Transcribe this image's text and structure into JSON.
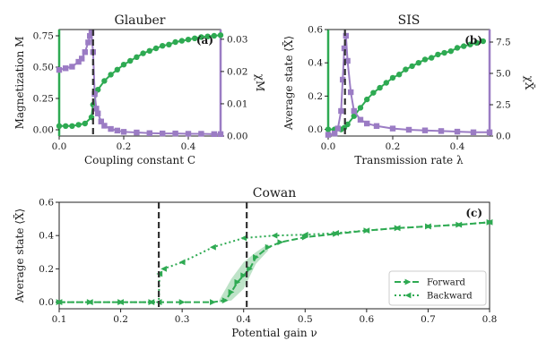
{
  "colors": {
    "green": "#2eaa52",
    "purple": "#9b7cc4",
    "dashed": "#333333",
    "band": "#a8dab5"
  },
  "chart_data": [
    {
      "id": "a",
      "type": "line",
      "title": "Glauber",
      "panel_label": "(a)",
      "xlabel": "Coupling constant C",
      "ylabel": "Magnetization M",
      "y2label": "χM",
      "xlim": [
        0,
        0.5
      ],
      "ylim": [
        -0.05,
        0.8
      ],
      "y2lim": [
        0,
        0.033
      ],
      "xticks": [
        0.0,
        0.2,
        0.4
      ],
      "yticks": [
        0.0,
        0.25,
        0.5,
        0.75
      ],
      "y2ticks": [
        0.0,
        0.01,
        0.02,
        0.03
      ],
      "xtick_labels": [
        "0.0",
        "0.2",
        "0.4"
      ],
      "ytick_labels": [
        "0.00",
        "0.25",
        "0.50",
        "0.75"
      ],
      "y2tick_labels": [
        "0.00",
        "0.01",
        "0.02",
        "0.03"
      ],
      "critical_x": [
        0.105
      ],
      "series": [
        {
          "axis": "left",
          "marker": "circle",
          "color": "#2eaa52",
          "x": [
            0.0,
            0.02,
            0.04,
            0.06,
            0.08,
            0.1,
            0.105,
            0.12,
            0.14,
            0.16,
            0.18,
            0.2,
            0.22,
            0.24,
            0.26,
            0.28,
            0.3,
            0.32,
            0.34,
            0.36,
            0.38,
            0.4,
            0.42,
            0.44,
            0.46,
            0.48,
            0.5
          ],
          "values": [
            0.03,
            0.03,
            0.03,
            0.04,
            0.05,
            0.1,
            0.2,
            0.32,
            0.39,
            0.44,
            0.48,
            0.52,
            0.55,
            0.58,
            0.61,
            0.63,
            0.65,
            0.67,
            0.68,
            0.7,
            0.71,
            0.72,
            0.73,
            0.74,
            0.745,
            0.75,
            0.755
          ]
        },
        {
          "axis": "right",
          "marker": "square",
          "color": "#9b7cc4",
          "x": [
            0.0,
            0.02,
            0.04,
            0.06,
            0.07,
            0.08,
            0.09,
            0.095,
            0.1,
            0.105,
            0.11,
            0.115,
            0.12,
            0.13,
            0.14,
            0.16,
            0.18,
            0.2,
            0.24,
            0.28,
            0.32,
            0.36,
            0.4,
            0.44,
            0.48,
            0.5
          ],
          "values": [
            0.0205,
            0.021,
            0.0215,
            0.023,
            0.024,
            0.026,
            0.029,
            0.031,
            0.032,
            0.026,
            0.013,
            0.0085,
            0.007,
            0.0045,
            0.0032,
            0.0022,
            0.0017,
            0.0013,
            0.0011,
            0.0009,
            0.0008,
            0.0008,
            0.0007,
            0.0007,
            0.0006,
            0.0006
          ]
        }
      ]
    },
    {
      "id": "b",
      "type": "line",
      "title": "SIS",
      "panel_label": "(b)",
      "xlabel": "Transmission rate λ",
      "ylabel": "Average state ⟨X̄⟩",
      "y2label": "χX̄",
      "xlim": [
        0,
        0.5
      ],
      "ylim": [
        -0.04,
        0.6
      ],
      "y2lim": [
        0,
        8.5
      ],
      "xticks": [
        0.0,
        0.2,
        0.4
      ],
      "yticks": [
        0.0,
        0.2,
        0.4,
        0.6
      ],
      "y2ticks": [
        0.0,
        2.5,
        5.0,
        7.5
      ],
      "xtick_labels": [
        "0.0",
        "0.2",
        "0.4"
      ],
      "ytick_labels": [
        "0.0",
        "0.2",
        "0.4",
        "0.6"
      ],
      "y2tick_labels": [
        "0.0",
        "2.5",
        "5.0",
        "7.5"
      ],
      "critical_x": [
        0.052
      ],
      "series": [
        {
          "axis": "left",
          "marker": "circle",
          "color": "#2eaa52",
          "x": [
            0.0,
            0.02,
            0.04,
            0.05,
            0.06,
            0.08,
            0.1,
            0.12,
            0.14,
            0.16,
            0.18,
            0.2,
            0.22,
            0.24,
            0.26,
            0.28,
            0.3,
            0.32,
            0.34,
            0.36,
            0.38,
            0.4,
            0.42,
            0.44,
            0.46,
            0.48
          ],
          "values": [
            0.0,
            0.0,
            0.0,
            0.01,
            0.03,
            0.08,
            0.13,
            0.18,
            0.22,
            0.25,
            0.28,
            0.31,
            0.33,
            0.36,
            0.38,
            0.4,
            0.42,
            0.43,
            0.45,
            0.46,
            0.47,
            0.49,
            0.5,
            0.51,
            0.52,
            0.53
          ]
        },
        {
          "axis": "right",
          "marker": "square",
          "color": "#9b7cc4",
          "x": [
            0.0,
            0.02,
            0.03,
            0.04,
            0.045,
            0.05,
            0.055,
            0.06,
            0.07,
            0.08,
            0.1,
            0.12,
            0.15,
            0.2,
            0.25,
            0.3,
            0.35,
            0.4,
            0.45,
            0.5
          ],
          "values": [
            0.1,
            0.2,
            0.6,
            2.0,
            4.5,
            7.0,
            8.0,
            6.0,
            3.5,
            2.0,
            1.3,
            1.0,
            0.8,
            0.6,
            0.5,
            0.45,
            0.4,
            0.35,
            0.3,
            0.3
          ]
        }
      ]
    },
    {
      "id": "c",
      "type": "line",
      "title": "Cowan",
      "panel_label": "(c)",
      "xlabel": "Potential gain ν",
      "ylabel": "Average state ⟨X̄⟩",
      "xlim": [
        0.1,
        0.8
      ],
      "ylim": [
        -0.04,
        0.6
      ],
      "xticks": [
        0.1,
        0.2,
        0.3,
        0.4,
        0.5,
        0.6,
        0.7,
        0.8
      ],
      "yticks": [
        0.0,
        0.2,
        0.4,
        0.6
      ],
      "xtick_labels": [
        "0.1",
        "0.2",
        "0.3",
        "0.4",
        "0.5",
        "0.6",
        "0.7",
        "0.8"
      ],
      "ytick_labels": [
        "0.0",
        "0.2",
        "0.4",
        "0.6"
      ],
      "critical_x": [
        0.262,
        0.405
      ],
      "legend": {
        "placement": "bottom-right"
      },
      "series": [
        {
          "name": "Forward",
          "marker": "triangle-right",
          "line": "dashed",
          "color": "#2eaa52",
          "x": [
            0.1,
            0.15,
            0.2,
            0.25,
            0.3,
            0.35,
            0.37,
            0.38,
            0.39,
            0.4,
            0.41,
            0.42,
            0.44,
            0.46,
            0.5,
            0.55,
            0.6,
            0.65,
            0.7,
            0.75,
            0.8
          ],
          "values": [
            0.0,
            0.0,
            0.0,
            0.0,
            0.0,
            0.0,
            0.01,
            0.06,
            0.12,
            0.16,
            0.2,
            0.27,
            0.33,
            0.36,
            0.39,
            0.41,
            0.43,
            0.445,
            0.455,
            0.465,
            0.48
          ]
        },
        {
          "name": "Backward",
          "marker": "triangle-left",
          "line": "dotted",
          "color": "#2eaa52",
          "x": [
            0.8,
            0.75,
            0.7,
            0.65,
            0.6,
            0.55,
            0.5,
            0.45,
            0.4,
            0.35,
            0.3,
            0.27,
            0.263,
            0.262,
            0.25,
            0.2,
            0.15,
            0.1
          ],
          "values": [
            0.48,
            0.465,
            0.455,
            0.445,
            0.43,
            0.415,
            0.405,
            0.4,
            0.385,
            0.33,
            0.24,
            0.2,
            0.17,
            0.0,
            0.0,
            0.0,
            0.0,
            0.0
          ]
        }
      ]
    }
  ]
}
